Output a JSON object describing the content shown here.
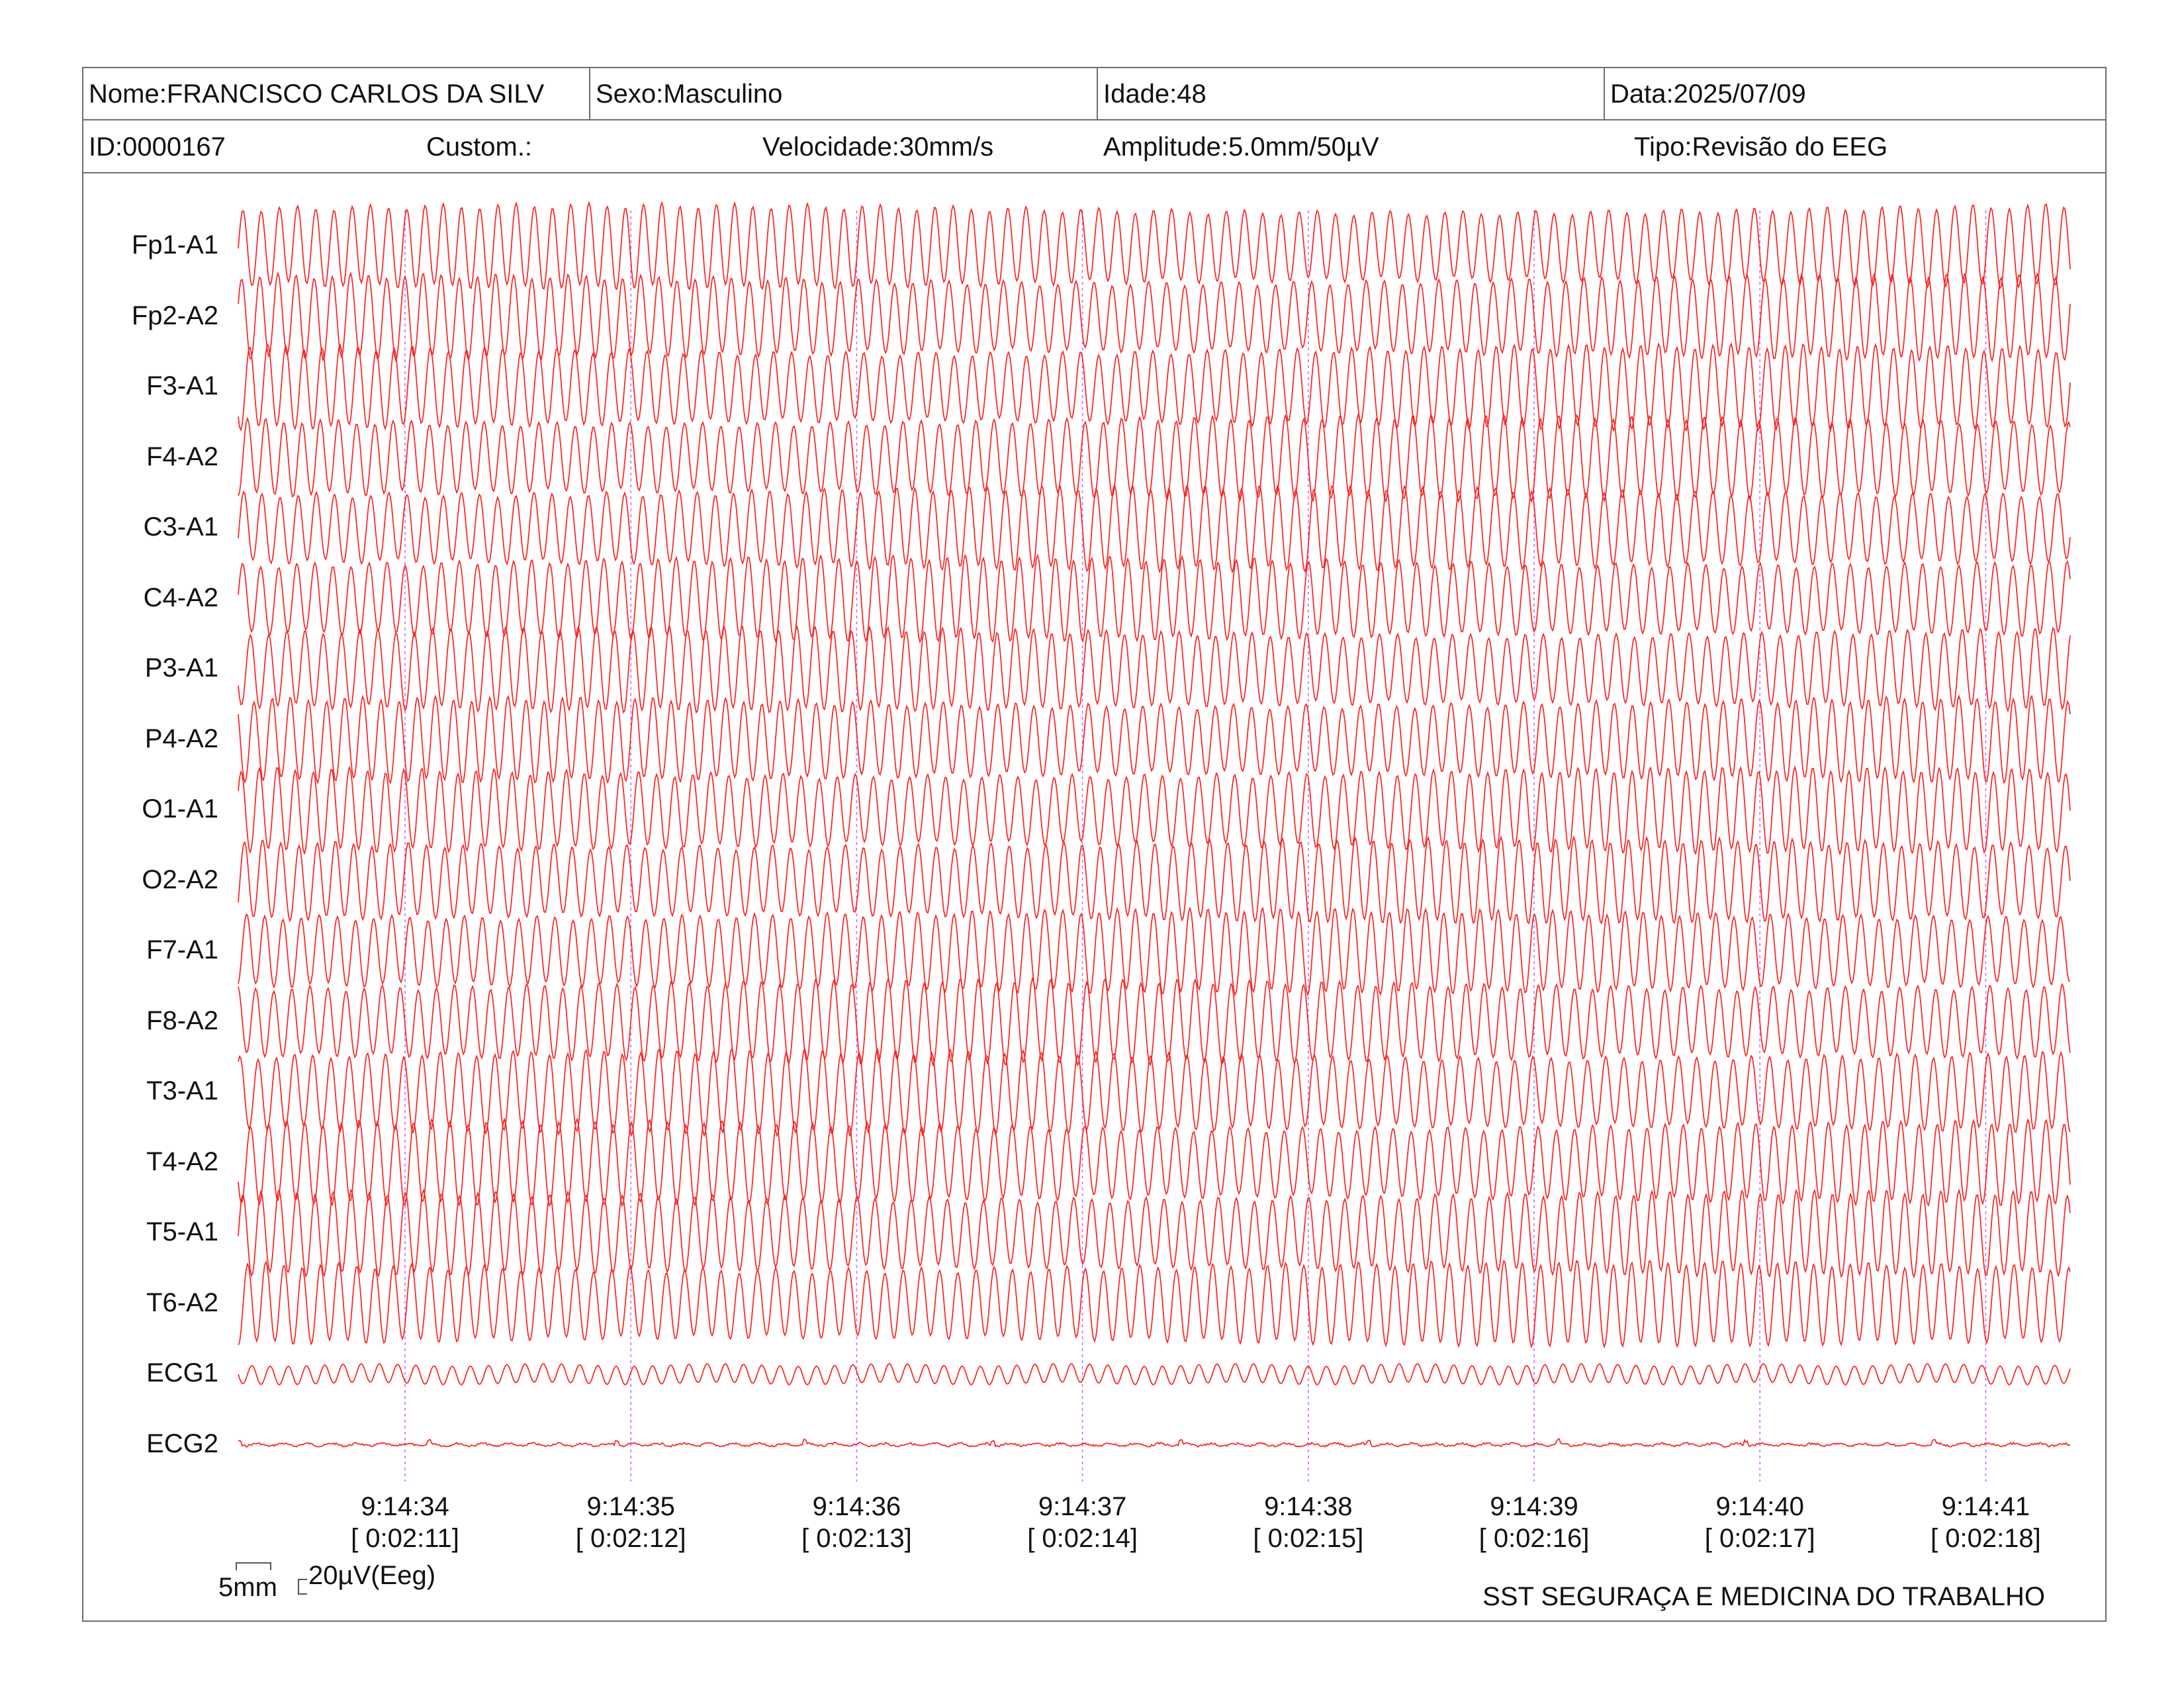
{
  "header": {
    "name": "Nome:FRANCISCO CARLOS DA SILV",
    "sex": "Sexo:Masculino",
    "age": "Idade:48",
    "date": "Data:2025/07/09",
    "id": "ID:0000167",
    "custom": "Custom.:",
    "speed": "Velocidade:30mm/s",
    "amplitude": "Amplitude:5.0mm/50µV",
    "type": "Tipo:Revisão do EEG"
  },
  "channels": [
    {
      "label": "Fp1-A1",
      "kind": "eeg"
    },
    {
      "label": "Fp2-A2",
      "kind": "eeg"
    },
    {
      "label": "F3-A1",
      "kind": "eeg"
    },
    {
      "label": "F4-A2",
      "kind": "eeg"
    },
    {
      "label": "C3-A1",
      "kind": "eeg"
    },
    {
      "label": "C4-A2",
      "kind": "eeg"
    },
    {
      "label": "P3-A1",
      "kind": "eeg"
    },
    {
      "label": "P4-A2",
      "kind": "eeg"
    },
    {
      "label": "O1-A1",
      "kind": "eeg"
    },
    {
      "label": "O2-A2",
      "kind": "eeg"
    },
    {
      "label": "F7-A1",
      "kind": "eeg"
    },
    {
      "label": "F8-A2",
      "kind": "eeg"
    },
    {
      "label": "T3-A1",
      "kind": "eeg"
    },
    {
      "label": "T4-A2",
      "kind": "eeg"
    },
    {
      "label": "T5-A1",
      "kind": "eeg"
    },
    {
      "label": "T6-A2",
      "kind": "eeg"
    },
    {
      "label": "ECG1",
      "kind": "ecg1"
    },
    {
      "label": "ECG2",
      "kind": "ecg2"
    }
  ],
  "time_marks": [
    {
      "clock": "9:14:34",
      "elapsed": "[ 0:02:11]"
    },
    {
      "clock": "9:14:35",
      "elapsed": "[ 0:02:12]"
    },
    {
      "clock": "9:14:36",
      "elapsed": "[ 0:02:13]"
    },
    {
      "clock": "9:14:37",
      "elapsed": "[ 0:02:14]"
    },
    {
      "clock": "9:14:38",
      "elapsed": "[ 0:02:15]"
    },
    {
      "clock": "9:14:39",
      "elapsed": "[ 0:02:16]"
    },
    {
      "clock": "9:14:40",
      "elapsed": "[ 0:02:17]"
    },
    {
      "clock": "9:14:41",
      "elapsed": "[ 0:02:18]"
    }
  ],
  "scale": {
    "time_label": "5mm",
    "amplitude_label": "20µV(Eeg)"
  },
  "footer": {
    "company": "SST SEGURAÇA E MEDICINA DO TRABALHO"
  },
  "colors": {
    "trace": "#ff2020",
    "marker": "#cc66ff",
    "border": "#6e6e6e"
  }
}
